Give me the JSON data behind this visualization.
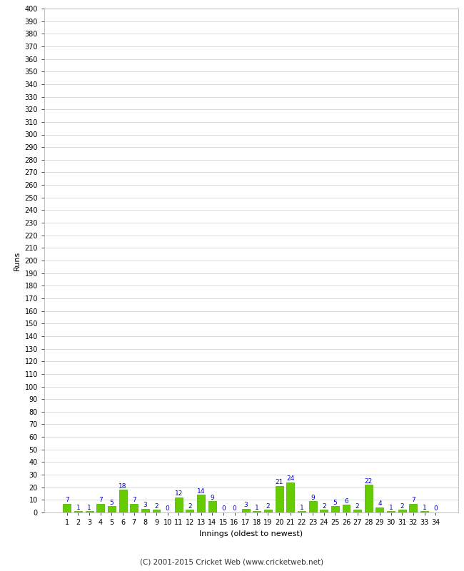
{
  "xlabel": "Innings (oldest to newest)",
  "ylabel": "Runs",
  "values": [
    7,
    1,
    1,
    7,
    5,
    18,
    7,
    3,
    2,
    0,
    12,
    2,
    14,
    9,
    0,
    0,
    3,
    1,
    2,
    21,
    24,
    1,
    9,
    2,
    5,
    6,
    2,
    22,
    4,
    1,
    2,
    7,
    1,
    0
  ],
  "innings": [
    1,
    2,
    3,
    4,
    5,
    6,
    7,
    8,
    9,
    10,
    11,
    12,
    13,
    14,
    15,
    16,
    17,
    18,
    19,
    20,
    21,
    22,
    23,
    24,
    25,
    26,
    27,
    28,
    29,
    30,
    31,
    32,
    33,
    34
  ],
  "bar_color": "#66cc00",
  "bar_edge_color": "#44aa00",
  "label_color": "#0000cc",
  "grid_color": "#cccccc",
  "bg_color": "#ffffff",
  "ylim": [
    0,
    400
  ],
  "footer": "(C) 2001-2015 Cricket Web (www.cricketweb.net)"
}
